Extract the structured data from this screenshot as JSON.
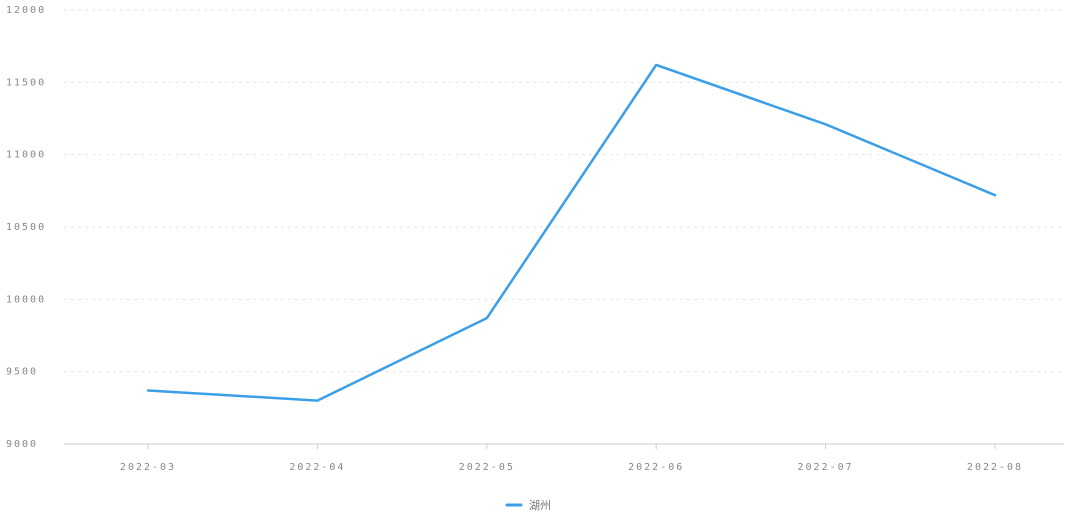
{
  "chart_data": {
    "type": "line",
    "categories": [
      "2022-03",
      "2022-04",
      "2022-05",
      "2022-06",
      "2022-07",
      "2022-08"
    ],
    "series": [
      {
        "name": "湖州",
        "values": [
          9370,
          9300,
          9870,
          11620,
          11210,
          10720
        ],
        "color": "#3b9fe8"
      }
    ],
    "y_ticks": [
      9000,
      9500,
      10000,
      10500,
      11000,
      11500,
      12000
    ],
    "ylim": [
      9000,
      12000
    ],
    "title": "",
    "xlabel": "",
    "ylabel": "",
    "grid": true,
    "legend_position": "bottom-center",
    "colors": {
      "grid": "#e6e6e6",
      "axis": "#cccccc",
      "tick_text": "#888888"
    }
  }
}
